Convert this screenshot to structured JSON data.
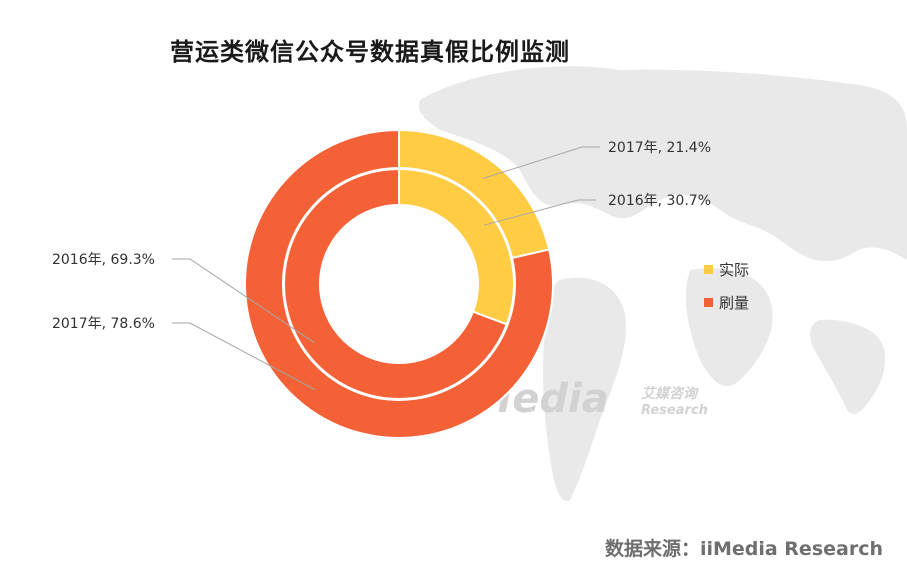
{
  "chart_data": {
    "type": "pie",
    "title": "营运类微信公众号数据真假比例监测",
    "rings": [
      {
        "name": "2017年",
        "slices": [
          {
            "category": "实际",
            "value": 21.4,
            "label": "2017年, 21.4%"
          },
          {
            "category": "刷量",
            "value": 78.6,
            "label": "2017年, 78.6%"
          }
        ]
      },
      {
        "name": "2016年",
        "slices": [
          {
            "category": "实际",
            "value": 30.7,
            "label": "2016年, 30.7%"
          },
          {
            "category": "刷量",
            "value": 69.3,
            "label": "2016年, 69.3%"
          }
        ]
      }
    ],
    "legend": [
      {
        "label": "实际",
        "color": "#FFCC44"
      },
      {
        "label": "刷量",
        "color": "#F46136"
      }
    ],
    "legend_position": "right"
  },
  "watermark": {
    "brand": "iiMedia",
    "cn": "艾媒咨询",
    "en": "Research"
  },
  "source": "数据来源：iiMedia Research"
}
